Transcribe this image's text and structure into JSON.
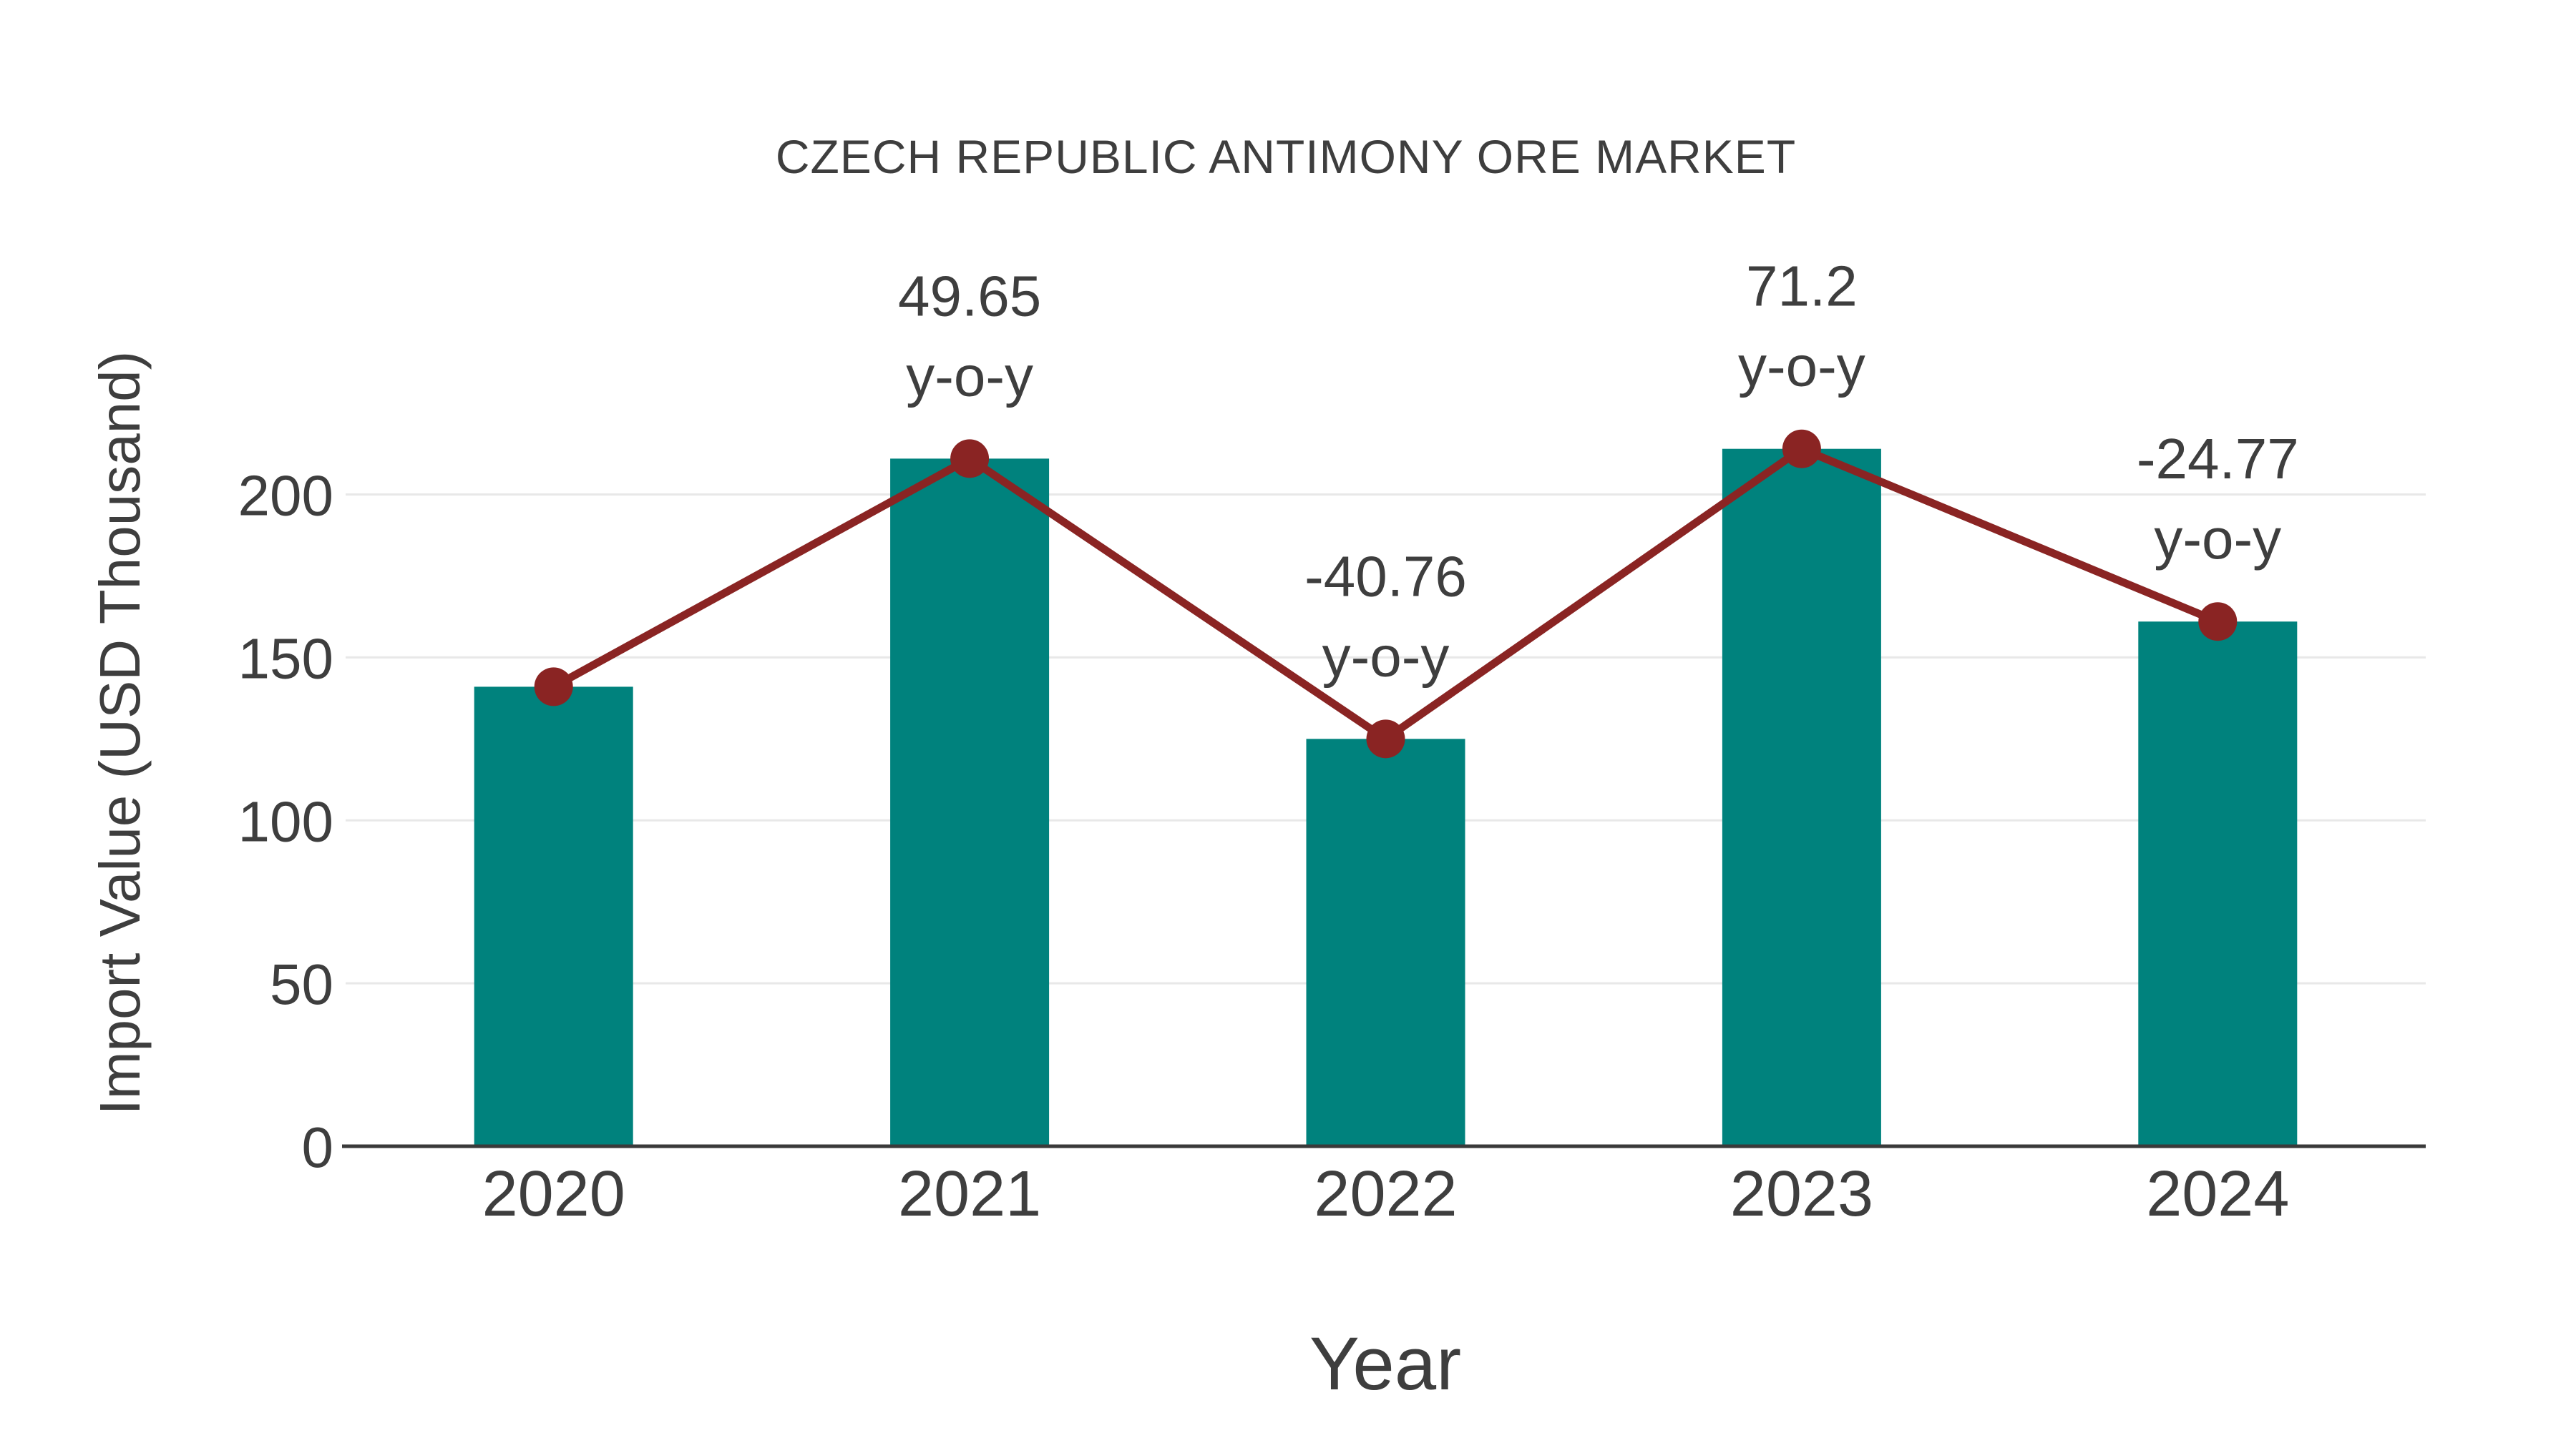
{
  "title": "CZECH REPUBLIC ANTIMONY ORE MARKET",
  "colors": {
    "background": "#FFFFFF",
    "bar": "#00827D",
    "line": "#8A2423",
    "marker": "#8A2423",
    "text": "#3E3E3E",
    "grid": "#E8E8E8",
    "axis": "#3A3A3A"
  },
  "chart_data": {
    "type": "bar",
    "title": "CZECH REPUBLIC ANTIMONY ORE MARKET",
    "xlabel": "Year",
    "ylabel": "Import Value (USD Thousand)",
    "categories": [
      "2020",
      "2021",
      "2022",
      "2023",
      "2024"
    ],
    "series": [
      {
        "name": "Import Value (USD Thousand)",
        "type": "bar",
        "values": [
          141,
          211,
          125,
          214,
          161
        ]
      },
      {
        "name": "y-o-y change (%)",
        "type": "line",
        "plotted_at": "bar tops",
        "values": [
          null,
          49.65,
          -40.76,
          71.2,
          -24.77
        ]
      }
    ],
    "annotations": [
      {
        "category": "2021",
        "line1": "49.65",
        "line2": "y-o-y"
      },
      {
        "category": "2022",
        "line1": "-40.76",
        "line2": "y-o-y"
      },
      {
        "category": "2023",
        "line1": "71.2",
        "line2": "y-o-y"
      },
      {
        "category": "2024",
        "line1": "-24.77",
        "line2": "y-o-y"
      }
    ],
    "yticks": [
      0,
      50,
      100,
      150,
      200
    ],
    "ylim": [
      0,
      230
    ],
    "grid": "horizontal",
    "legend_position": "none"
  }
}
